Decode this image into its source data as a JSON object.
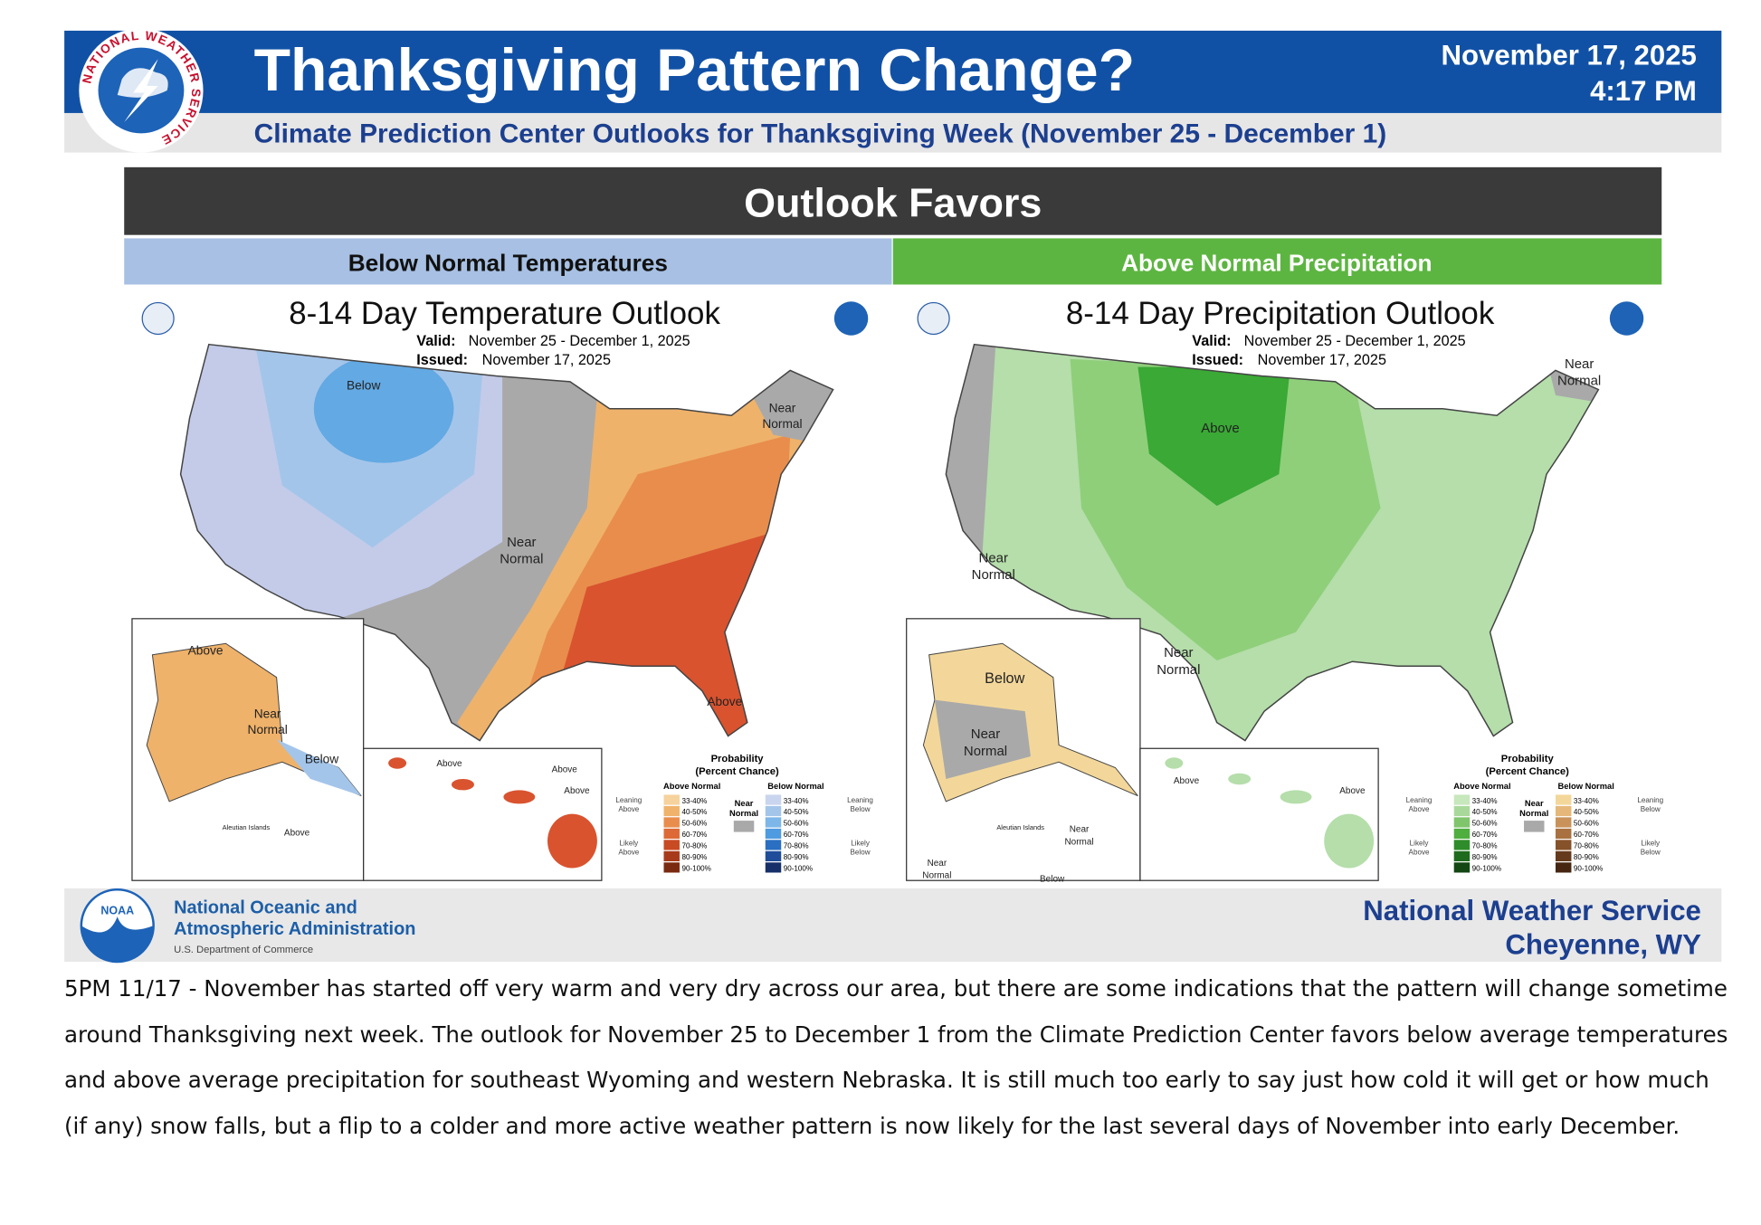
{
  "header": {
    "title": "Thanksgiving Pattern Change?",
    "date": "November 17, 2025",
    "time": "4:17 PM",
    "subtitle": "Climate Prediction Center Outlooks for Thanksgiving Week (November 25 - December 1)",
    "logo_text": "NATIONAL WEATHER SERVICE"
  },
  "banner": "Outlook Favors",
  "panels": [
    {
      "label": "Below Normal Temperatures",
      "map_title": "8-14 Day Temperature Outlook",
      "valid_label": "Valid:",
      "valid": "November 25 - December 1, 2025",
      "issued_label": "Issued:",
      "issued": "November 17, 2025",
      "regions": [
        [
          "Below"
        ],
        [
          "Near",
          "Normal"
        ],
        [
          "Near",
          "Normal"
        ],
        [
          "Above"
        ],
        [
          "Above"
        ],
        [
          "Near",
          "Normal"
        ],
        [
          "Below"
        ],
        [
          "Above"
        ],
        [
          "Above"
        ],
        [
          "Above"
        ],
        [
          "Aleutian Islands"
        ],
        [
          "Above"
        ]
      ],
      "legend": {
        "title": [
          "Probability",
          "(Percent Chance)"
        ],
        "above": "Above Normal",
        "below": "Below Normal",
        "near": [
          "Near",
          "Normal"
        ],
        "ranges": [
          "33-40%",
          "40-50%",
          "50-60%",
          "60-70%",
          "70-80%",
          "80-90%",
          "90-100%"
        ],
        "left_notes": [
          [
            "Leaning",
            "Above"
          ],
          [
            "Likely",
            "Above"
          ]
        ],
        "right_notes": [
          [
            "Leaning",
            "Below"
          ],
          [
            "Likely",
            "Below"
          ]
        ]
      }
    },
    {
      "label": "Above Normal Precipitation",
      "map_title": "8-14 Day Precipitation Outlook",
      "valid_label": "Valid:",
      "valid": "November 25 - December 1, 2025",
      "issued_label": "Issued:",
      "issued": "November 17, 2025",
      "regions": [
        [
          "Near",
          "Normal"
        ],
        [
          "Above"
        ],
        [
          "Near",
          "Normal"
        ],
        [
          "Near",
          "Normal"
        ],
        [
          "Below"
        ],
        [
          "Near",
          "Normal"
        ],
        [
          "Above"
        ],
        [
          "Above"
        ],
        [
          "Aleutian Islands"
        ],
        [
          "Near",
          "Normal"
        ],
        [
          "Near",
          "Normal"
        ],
        [
          "Below"
        ]
      ],
      "legend": {
        "title": [
          "Probability",
          "(Percent Chance)"
        ],
        "above": "Above Normal",
        "below": "Below Normal",
        "near": [
          "Near",
          "Normal"
        ],
        "ranges": [
          "33-40%",
          "40-50%",
          "50-60%",
          "60-70%",
          "70-80%",
          "80-90%",
          "90-100%"
        ],
        "left_notes": [
          [
            "Leaning",
            "Above"
          ],
          [
            "Likely",
            "Above"
          ]
        ],
        "right_notes": [
          [
            "Leaning",
            "Below"
          ],
          [
            "Likely",
            "Below"
          ]
        ]
      }
    }
  ],
  "footer": {
    "noaa": "NOAA",
    "agency": [
      "National Oceanic and",
      "Atmospheric Administration"
    ],
    "department": "U.S. Department of Commerce",
    "office": [
      "National Weather Service",
      "Cheyenne, WY"
    ]
  },
  "caption": "5PM 11/17 - November has started off very warm and very dry across our area, but there are some indications that the pattern will change sometime around Thanksgiving next week. The outlook for November 25 to December 1 from the Climate Prediction Center favors below average temperatures and above average precipitation for southeast Wyoming and western Nebraska. It is still much too early to say just how cold it will get or how much (if any) snow falls, but a flip to a colder and more active weather pattern is now likely for the last several days of November into early December."
}
